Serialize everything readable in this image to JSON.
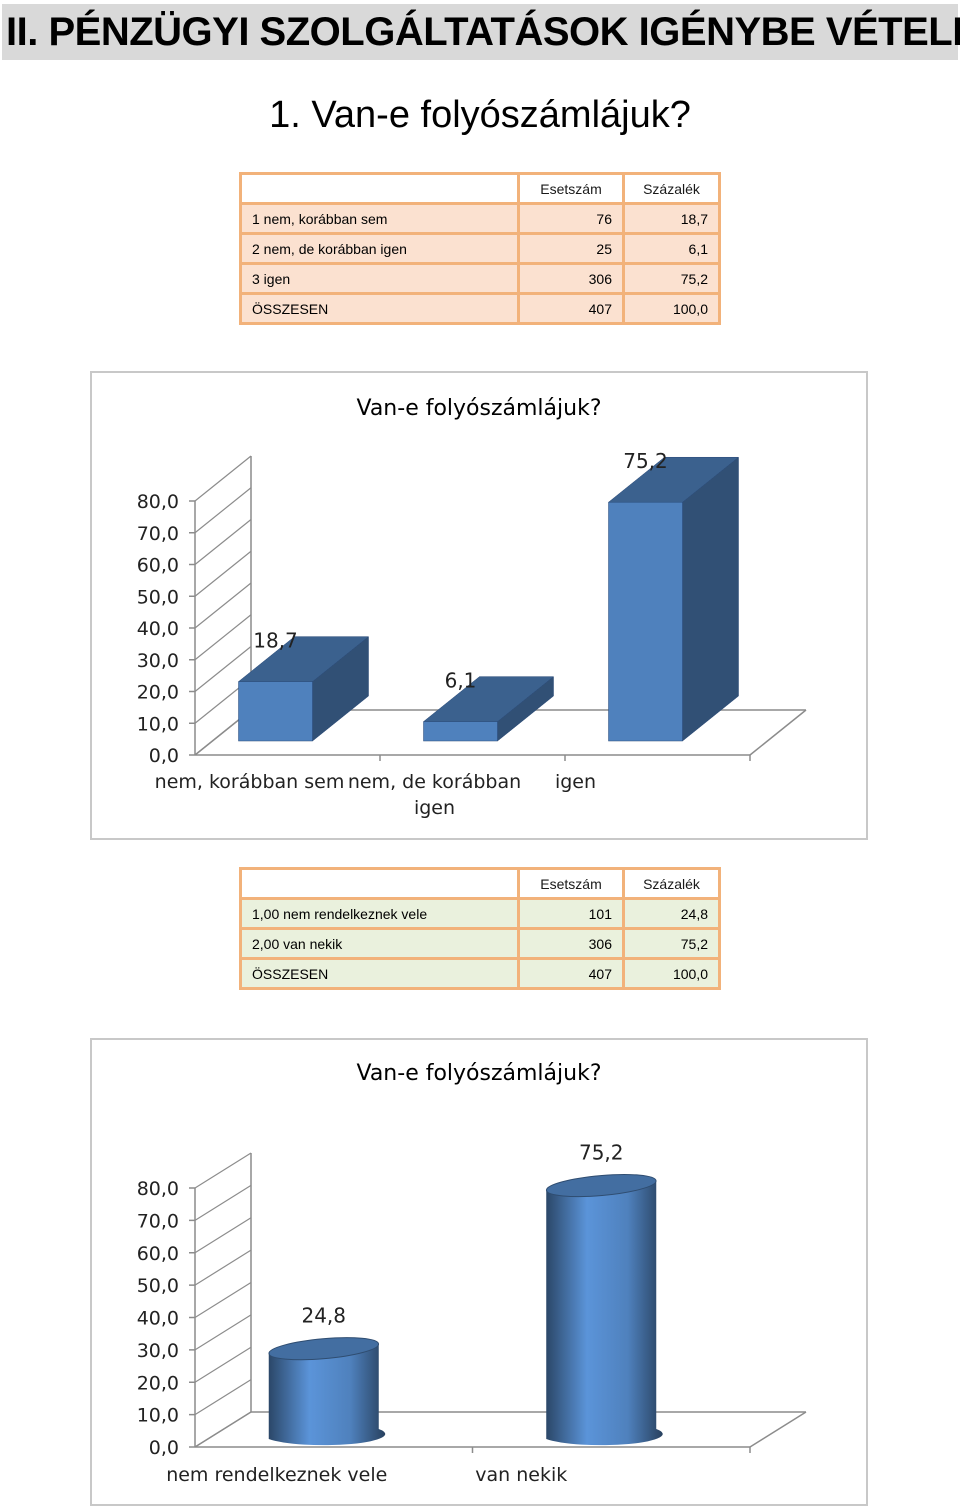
{
  "page": {
    "header": "II. PÉNZÜGYI SZOLGÁLTATÁSOK IGÉNYBE VÉTELE",
    "question_title": "1. Van-e folyószámlájuk?"
  },
  "table1": {
    "headers": [
      "",
      "Esetszám",
      "Százalék"
    ],
    "rows": [
      [
        "1 nem, korábban sem",
        "76",
        "18,7"
      ],
      [
        "2 nem, de korábban igen",
        "25",
        "6,1"
      ],
      [
        "3 igen",
        "306",
        "75,2"
      ],
      [
        "ÖSSZESEN",
        "407",
        "100,0"
      ]
    ]
  },
  "table2": {
    "headers": [
      "",
      "Esetszám",
      "Százalék"
    ],
    "rows": [
      [
        "1,00 nem rendelkeznek vele",
        "101",
        "24,8"
      ],
      [
        "2,00 van nekik",
        "306",
        "75,2"
      ],
      [
        "ÖSSZESEN",
        "407",
        "100,0"
      ]
    ]
  },
  "chart_data": [
    {
      "type": "bar",
      "title": "Van-e folyószámlájuk?",
      "categories": [
        "nem, korábban sem",
        "nem, de korábban igen",
        "igen"
      ],
      "values": [
        18.7,
        6.1,
        75.2
      ],
      "data_labels": [
        "18,7",
        "6,1",
        "75,2"
      ],
      "yticks": [
        "0,0",
        "10,0",
        "20,0",
        "30,0",
        "40,0",
        "50,0",
        "60,0",
        "70,0",
        "80,0"
      ],
      "ylim": [
        0,
        80
      ],
      "style": "3d-box",
      "color": "#4f81bd",
      "grid": false,
      "legend": "none"
    },
    {
      "type": "bar",
      "title": "Van-e folyószámlájuk?",
      "categories": [
        "nem rendelkeznek vele",
        "van nekik"
      ],
      "values": [
        24.8,
        75.2
      ],
      "data_labels": [
        "24,8",
        "75,2"
      ],
      "yticks": [
        "0,0",
        "10,0",
        "20,0",
        "30,0",
        "40,0",
        "50,0",
        "60,0",
        "70,0",
        "80,0"
      ],
      "ylim": [
        0,
        80
      ],
      "style": "3d-cylinder",
      "color": "#4f81bd",
      "grid": false,
      "legend": "none"
    }
  ]
}
